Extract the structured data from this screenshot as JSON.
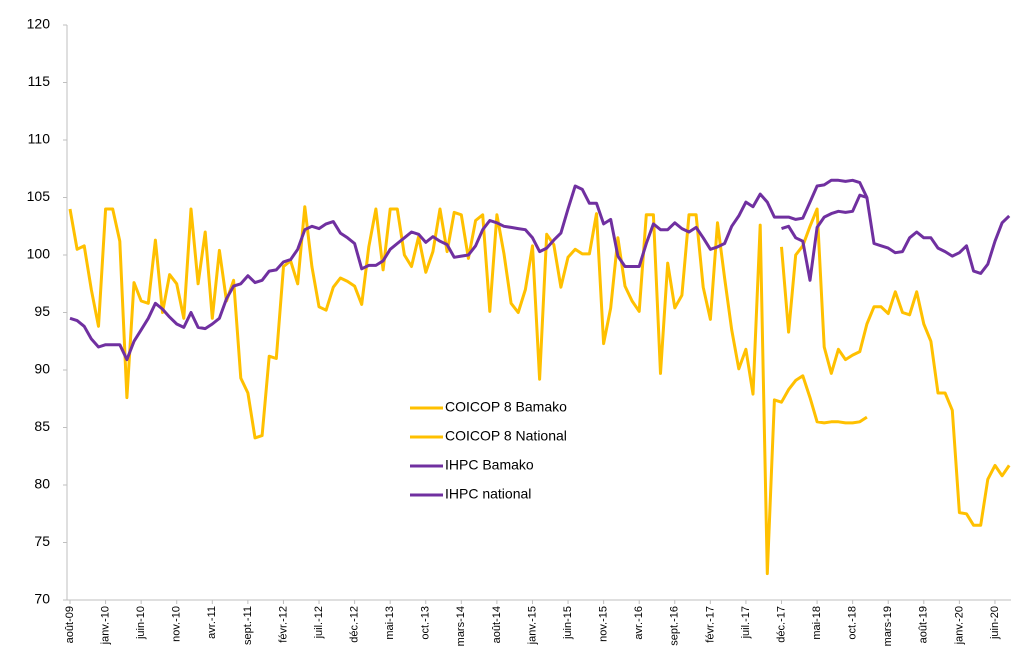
{
  "chart_data": {
    "type": "line",
    "categories": [
      "août-09",
      null,
      null,
      null,
      null,
      "janv.-10",
      null,
      null,
      null,
      null,
      "juin-10",
      null,
      null,
      null,
      null,
      "nov.-10",
      null,
      null,
      null,
      null,
      "avr.-11",
      null,
      null,
      null,
      null,
      "sept.-11",
      null,
      null,
      null,
      null,
      "févr.-12",
      null,
      null,
      null,
      null,
      "juil.-12",
      null,
      null,
      null,
      null,
      "déc.-12",
      null,
      null,
      null,
      null,
      "mai-13",
      null,
      null,
      null,
      null,
      "oct.-13",
      null,
      null,
      null,
      null,
      "mars-14",
      null,
      null,
      null,
      null,
      "août-14",
      null,
      null,
      null,
      null,
      "janv.-15",
      null,
      null,
      null,
      null,
      "juin-15",
      null,
      null,
      null,
      null,
      "nov.-15",
      null,
      null,
      null,
      null,
      "avr.-16",
      null,
      null,
      null,
      null,
      "sept.-16",
      null,
      null,
      null,
      null,
      "févr.-17",
      null,
      null,
      null,
      null,
      "juil.-17",
      null,
      null,
      null,
      null,
      "déc.-17",
      null,
      null,
      null,
      null,
      "mai-18",
      null,
      null,
      null,
      null,
      "oct.-18",
      null,
      null,
      null,
      null,
      "mars-19",
      null,
      null,
      null,
      null,
      "août-19",
      null,
      null,
      null,
      null,
      "janv.-20",
      null,
      null,
      null,
      null,
      "juin-20",
      null,
      null
    ],
    "series": [
      {
        "name": "COICOP 8 Bamako",
        "color": "#FFC000",
        "values": [
          104,
          100.5,
          100.8,
          97,
          93.8,
          104,
          104,
          101.2,
          87.6,
          97.6,
          96,
          95.8,
          101.3,
          95,
          98.3,
          97.5,
          94.5,
          104,
          97.5,
          102,
          94.5,
          100.4,
          96,
          97.8,
          89.3,
          88,
          84.1,
          84.3,
          91.2,
          91,
          99,
          99.5,
          97.5,
          104.2,
          99,
          95.5,
          95.2,
          97.2,
          98,
          97.7,
          97.3,
          95.7,
          100.7,
          104,
          98.7,
          104,
          104,
          100,
          99,
          101.6,
          98.5,
          100.3,
          104,
          100.3,
          103.7,
          103.5,
          99.7,
          103,
          103.5,
          95.1,
          103.5,
          100.1,
          95.8,
          95,
          97,
          100.8,
          89.2,
          101.8,
          100.9,
          97.2,
          99.8,
          100.5,
          100.1,
          100.1,
          103.6,
          92.3,
          95.4,
          101.5,
          97.3,
          96,
          95.1,
          103.5,
          103.5,
          89.7,
          99.3,
          95.4,
          96.5,
          103.5,
          103.5,
          97.2,
          94.4,
          102.8,
          98,
          93.5,
          90.1,
          91.8,
          87.9,
          102.6,
          72.3,
          87.4,
          87.2,
          88.3,
          89.1,
          89.5,
          87.6,
          85.5,
          85.4,
          85.5,
          85.5,
          85.4,
          85.4,
          85.5,
          85.9,
          null,
          null,
          null,
          null,
          null,
          null,
          null,
          null,
          null,
          null,
          null,
          null,
          null,
          null,
          null,
          null,
          null,
          null,
          null,
          null
        ]
      },
      {
        "name": "COICOP 8 National",
        "color": "#FFC000",
        "values": [
          null,
          null,
          null,
          null,
          null,
          null,
          null,
          null,
          null,
          null,
          null,
          null,
          null,
          null,
          null,
          null,
          null,
          null,
          null,
          null,
          null,
          null,
          null,
          null,
          null,
          null,
          null,
          null,
          null,
          null,
          null,
          null,
          null,
          null,
          null,
          null,
          null,
          null,
          null,
          null,
          null,
          null,
          null,
          null,
          null,
          null,
          null,
          null,
          null,
          null,
          null,
          null,
          null,
          null,
          null,
          null,
          null,
          null,
          null,
          null,
          null,
          null,
          null,
          null,
          null,
          null,
          null,
          null,
          null,
          null,
          null,
          null,
          null,
          null,
          null,
          null,
          null,
          null,
          null,
          null,
          null,
          null,
          null,
          null,
          null,
          null,
          null,
          null,
          null,
          null,
          null,
          null,
          null,
          null,
          null,
          null,
          null,
          null,
          null,
          null,
          100.7,
          93.3,
          100,
          100.8,
          102.5,
          104,
          92,
          89.7,
          91.8,
          90.9,
          91.3,
          91.6,
          94,
          95.5,
          95.5,
          94.9,
          96.8,
          95,
          94.8,
          96.8,
          94,
          92.5,
          88,
          88,
          86.5,
          77.6,
          77.5,
          76.5,
          76.5,
          80.5,
          81.7,
          80.8,
          81.7
        ]
      },
      {
        "name": "IHPC Bamako",
        "color": "#7030A0",
        "values": [
          94.5,
          94.3,
          93.8,
          92.7,
          92,
          92.2,
          92.2,
          92.2,
          90.9,
          92.5,
          93.5,
          94.5,
          95.8,
          95.3,
          94.6,
          94,
          93.7,
          95,
          93.7,
          93.6,
          94,
          94.5,
          96.2,
          97.3,
          97.5,
          98.2,
          97.6,
          97.8,
          98.6,
          98.7,
          99.4,
          99.6,
          100.5,
          102.2,
          102.5,
          102.3,
          102.7,
          102.9,
          101.9,
          101.5,
          101,
          98.8,
          99.1,
          99.1,
          99.5,
          100.5,
          101,
          101.5,
          102,
          101.8,
          101.1,
          101.6,
          101.2,
          100.9,
          99.8,
          99.9,
          100,
          100.8,
          102.2,
          103,
          102.8,
          102.5,
          102.4,
          102.3,
          102.2,
          101.5,
          100.3,
          100.6,
          101.3,
          101.9,
          104,
          106,
          105.7,
          104.5,
          104.5,
          102.7,
          103.1,
          99.9,
          99,
          99,
          99,
          101,
          102.7,
          102.2,
          102.2,
          102.8,
          102.3,
          102,
          102.4,
          101.5,
          100.5,
          100.7,
          101,
          102.5,
          103.4,
          104.6,
          104.2,
          105.3,
          104.6,
          103.3,
          103.3,
          103.3,
          103.1,
          103.2,
          104.6,
          106,
          106.1,
          106.5,
          106.5,
          106.4,
          106.5,
          106.3,
          105,
          101,
          100.8,
          100.6,
          100.2,
          100.3,
          101.5,
          102,
          101.5,
          101.5,
          100.6,
          100.3,
          99.9,
          100.2,
          100.8,
          98.6,
          98.4,
          99.2,
          101.2,
          102.8,
          103.4
        ]
      },
      {
        "name": "IHPC national",
        "color": "#7030A0",
        "values": [
          null,
          null,
          null,
          null,
          null,
          null,
          null,
          null,
          null,
          null,
          null,
          null,
          null,
          null,
          null,
          null,
          null,
          null,
          null,
          null,
          null,
          null,
          null,
          null,
          null,
          null,
          null,
          null,
          null,
          null,
          null,
          null,
          null,
          null,
          null,
          null,
          null,
          null,
          null,
          null,
          null,
          null,
          null,
          null,
          null,
          null,
          null,
          null,
          null,
          null,
          null,
          null,
          null,
          null,
          null,
          null,
          null,
          null,
          null,
          null,
          null,
          null,
          null,
          null,
          null,
          null,
          null,
          null,
          null,
          null,
          null,
          null,
          null,
          null,
          null,
          null,
          null,
          null,
          null,
          null,
          null,
          null,
          null,
          null,
          null,
          null,
          null,
          null,
          null,
          null,
          null,
          null,
          null,
          null,
          null,
          null,
          null,
          null,
          null,
          null,
          102.3,
          102.5,
          101.5,
          101.2,
          97.8,
          102.4,
          103.3,
          103.6,
          103.8,
          103.7,
          103.8,
          105.2,
          105,
          null,
          null,
          null,
          null,
          null,
          null,
          null,
          null,
          null,
          null,
          null,
          null,
          null,
          null,
          null,
          null,
          null,
          null,
          null,
          null
        ]
      }
    ],
    "ylim": [
      70,
      120
    ],
    "yticks": [
      70,
      75,
      80,
      85,
      90,
      95,
      100,
      105,
      110,
      115,
      120
    ],
    "grid": false,
    "legend": "center"
  }
}
